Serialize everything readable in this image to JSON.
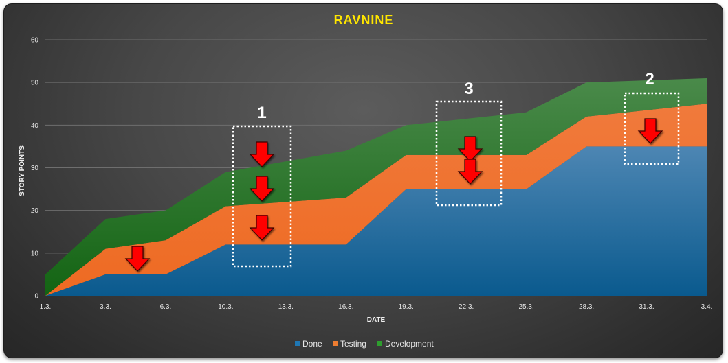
{
  "chart_data": {
    "type": "area",
    "stacked": true,
    "title": "RAVNINE",
    "xlabel": "DATE",
    "ylabel": "STORY POINTS",
    "ylim": [
      0,
      60
    ],
    "yticks": [
      "0",
      "10",
      "20",
      "30",
      "40",
      "50",
      "60"
    ],
    "grid": true,
    "legend_position": "bottom",
    "x_ticks": [
      "1.3.",
      "3.3.",
      "6.3.",
      "10.3.",
      "13.3.",
      "16.3.",
      "19.3.",
      "22.3.",
      "25.3.",
      "28.3.",
      "31.3.",
      "3.4."
    ],
    "x_points": [
      "1.3.",
      "3.3.",
      "6.3.",
      "10.3.",
      "16.3.",
      "19.3.",
      "25.3.",
      "28.3.",
      "3.4."
    ],
    "series": [
      {
        "name": "Done",
        "color": "#1f77b4",
        "values": [
          0,
          5,
          5,
          12,
          12,
          25,
          25,
          35,
          35
        ]
      },
      {
        "name": "Testing",
        "color": "#ed7d31",
        "values": [
          0,
          6,
          8,
          9,
          11,
          8,
          8,
          7,
          10
        ]
      },
      {
        "name": "Development",
        "color": "#2e7d32",
        "values": [
          5,
          7,
          7,
          8,
          11,
          7,
          10,
          8,
          6
        ]
      }
    ],
    "annotations": [
      {
        "label": "1"
      },
      {
        "label": "2"
      },
      {
        "label": "3"
      }
    ]
  }
}
